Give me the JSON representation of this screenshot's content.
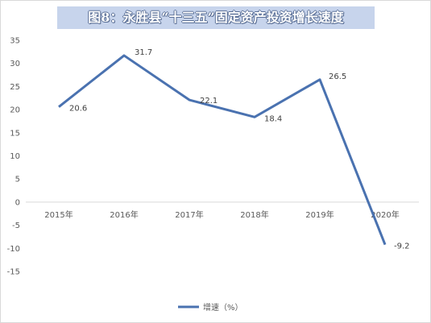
{
  "chart_data": {
    "type": "line",
    "title": "图8：永胜县“十三五”固定资产投资增长速度",
    "categories": [
      "2015年",
      "2016年",
      "2017年",
      "2018年",
      "2019年",
      "2020年"
    ],
    "series": [
      {
        "name": "增速（%）",
        "values": [
          20.6,
          31.7,
          22.1,
          18.4,
          26.5,
          -9.2
        ],
        "data_labels": [
          "20.6",
          "31.7",
          "22.1",
          "18.4",
          "26.5",
          "-9.2"
        ],
        "color": "#4a72b0"
      }
    ],
    "ylim": [
      -15,
      35
    ],
    "yticks": [
      35,
      30,
      25,
      20,
      15,
      10,
      5,
      0,
      -5,
      -10,
      -15
    ],
    "grid": false,
    "legend_position": "bottom"
  }
}
